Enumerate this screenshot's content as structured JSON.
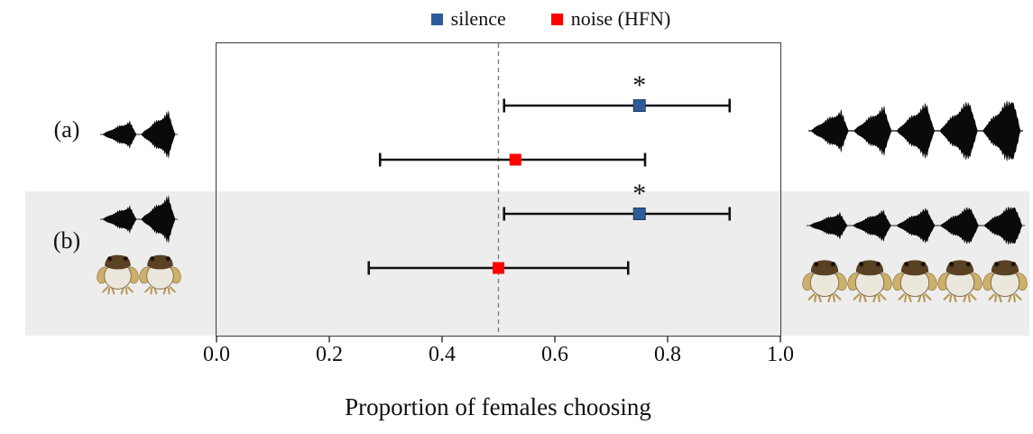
{
  "figure": {
    "significance_marker": "*"
  },
  "chart_data": {
    "type": "scatter",
    "title": "",
    "xlabel": "Proportion of females choosing",
    "xlim": [
      0,
      1
    ],
    "xticks": [
      "0.0",
      "0.2",
      "0.4",
      "0.6",
      "0.8",
      "1.0"
    ],
    "xtick_values": [
      0,
      0.2,
      0.4,
      0.6,
      0.8,
      1.0
    ],
    "reference_line_x": 0.5,
    "grid": false,
    "legend_position": "top-center",
    "legend": [
      {
        "label": "silence",
        "color": "#2f5c99"
      },
      {
        "label": "noise (HFN)",
        "color": "#fe0000"
      }
    ],
    "series_colors": {
      "silence": "#2f5c99",
      "noise (HFN)": "#fe0000"
    },
    "rows": [
      {
        "label": "(a)",
        "left_stimulus_calls": 2,
        "right_stimulus_calls": 5,
        "left_frogs": 0,
        "right_frogs": 0,
        "points": [
          {
            "series": "silence",
            "value": 0.75,
            "ci_low": 0.51,
            "ci_high": 0.91,
            "significant": true
          },
          {
            "series": "noise (HFN)",
            "value": 0.53,
            "ci_low": 0.29,
            "ci_high": 0.76,
            "significant": false
          }
        ]
      },
      {
        "label": "(b)",
        "left_stimulus_calls": 2,
        "right_stimulus_calls": 5,
        "left_frogs": 2,
        "right_frogs": 5,
        "points": [
          {
            "series": "silence",
            "value": 0.75,
            "ci_low": 0.51,
            "ci_high": 0.91,
            "significant": true
          },
          {
            "series": "noise (HFN)",
            "value": 0.5,
            "ci_low": 0.27,
            "ci_high": 0.73,
            "significant": false
          }
        ]
      }
    ]
  }
}
